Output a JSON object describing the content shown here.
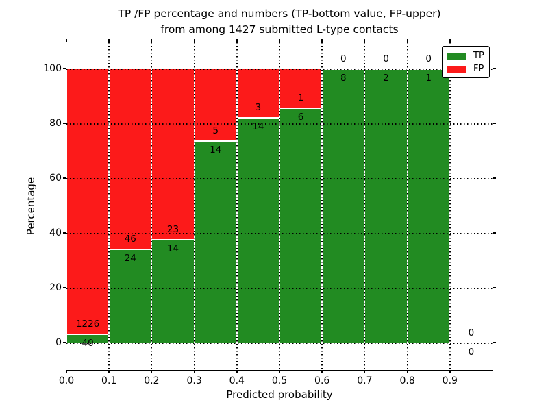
{
  "figure": {
    "title_line1": "TP /FP percentage and numbers (TP-bottom value, FP-upper)",
    "title_line2": "from among 1427 submitted L-type contacts",
    "xlabel": "Predicted probability",
    "ylabel": "Percentage"
  },
  "legend": {
    "position": "upper right",
    "items": [
      {
        "label": "TP",
        "color": "#228b22"
      },
      {
        "label": "FP",
        "color": "#fc1a1a"
      }
    ]
  },
  "colors": {
    "tp": "#228b22",
    "fp": "#fc1a1a",
    "text": "#000000",
    "background": "#ffffff"
  },
  "chart_data": {
    "type": "bar",
    "stacked": true,
    "title": "TP /FP percentage and numbers (TP-bottom value, FP-upper) from among 1427 submitted L-type contacts",
    "xlabel": "Predicted probability",
    "ylabel": "Percentage",
    "xlim": [
      0.0,
      1.0
    ],
    "ylim": [
      -10,
      110
    ],
    "grid": "dotted",
    "legend_position": "upper right",
    "x_tick_labels": [
      "0.0",
      "0.1",
      "0.2",
      "0.3",
      "0.4",
      "0.5",
      "0.6",
      "0.7",
      "0.8",
      "0.9"
    ],
    "y_tick_values": [
      0,
      20,
      40,
      60,
      80,
      100
    ],
    "total_contacts": 1427,
    "series_names": [
      "TP",
      "FP"
    ],
    "bins": [
      {
        "x_start": 0.0,
        "x_end": 0.1,
        "tp": 40,
        "fp": 1226,
        "tp_pct": 3.16,
        "fp_pct": 96.84
      },
      {
        "x_start": 0.1,
        "x_end": 0.2,
        "tp": 24,
        "fp": 46,
        "tp_pct": 34.29,
        "fp_pct": 65.71
      },
      {
        "x_start": 0.2,
        "x_end": 0.3,
        "tp": 14,
        "fp": 23,
        "tp_pct": 37.84,
        "fp_pct": 62.16
      },
      {
        "x_start": 0.3,
        "x_end": 0.4,
        "tp": 14,
        "fp": 5,
        "tp_pct": 73.68,
        "fp_pct": 26.32
      },
      {
        "x_start": 0.4,
        "x_end": 0.5,
        "tp": 14,
        "fp": 3,
        "tp_pct": 82.35,
        "fp_pct": 17.65
      },
      {
        "x_start": 0.5,
        "x_end": 0.6,
        "tp": 6,
        "fp": 1,
        "tp_pct": 85.71,
        "fp_pct": 14.29
      },
      {
        "x_start": 0.6,
        "x_end": 0.7,
        "tp": 8,
        "fp": 0,
        "tp_pct": 100,
        "fp_pct": 0
      },
      {
        "x_start": 0.7,
        "x_end": 0.8,
        "tp": 2,
        "fp": 0,
        "tp_pct": 100,
        "fp_pct": 0
      },
      {
        "x_start": 0.8,
        "x_end": 0.9,
        "tp": 1,
        "fp": 0,
        "tp_pct": 100,
        "fp_pct": 0
      },
      {
        "x_start": 0.9,
        "x_end": 1.0,
        "tp": 0,
        "fp": 0,
        "tp_pct": 0,
        "fp_pct": 0
      }
    ]
  }
}
